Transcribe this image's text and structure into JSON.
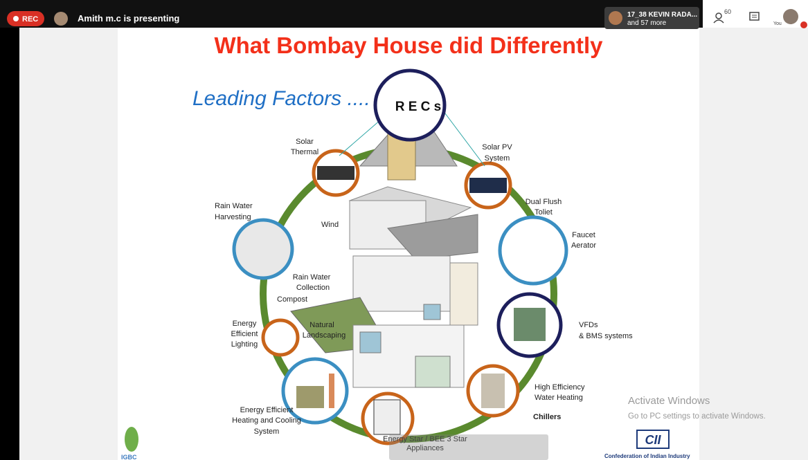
{
  "call_bar": {
    "recording": "REC",
    "presenter": "Amith m.c is presenting",
    "participant_tile": [
      "17_38 KEVIN RADA...",
      "and 57 more"
    ],
    "participant_count": "60",
    "self_label": "You"
  },
  "slide": {
    "title": "What Bombay House did Differently",
    "subtitle": "Leading Factors ....",
    "hub": "R E C s",
    "labels": {
      "solar_thermal": [
        "Solar",
        "Thermal"
      ],
      "solar_pv": [
        "Solar PV",
        "System"
      ],
      "dual_flush": [
        "Dual Flush",
        "Toliet"
      ],
      "faucet": [
        "Faucet",
        "Aerator"
      ],
      "rain_harvest": [
        "Rain Water",
        "Harvesting"
      ],
      "wind": "Wind",
      "rain_collection": [
        "Rain Water",
        "Collection"
      ],
      "compost": "Compost",
      "landscaping": [
        "Natural",
        "Landscaping"
      ],
      "lighting": [
        "Energy",
        "Efficient",
        "Lighting"
      ],
      "vfds": [
        "VFDs",
        "& BMS systems"
      ],
      "water_heating": [
        "High Efficiency",
        "Water Heating"
      ],
      "chillers": "Chillers",
      "hvac": [
        "Energy Efficient",
        "Heating and Cooling",
        "System"
      ],
      "appliances": [
        "Energy Star / BEE 3 Star",
        "Appliances"
      ]
    },
    "logos": {
      "cii": "CII",
      "cii_name": "Confederation of Indian Industry",
      "igbc": "IGBC"
    }
  },
  "watermark": {
    "title": "Activate Windows",
    "hint": "Go to PC settings to activate Windows."
  }
}
